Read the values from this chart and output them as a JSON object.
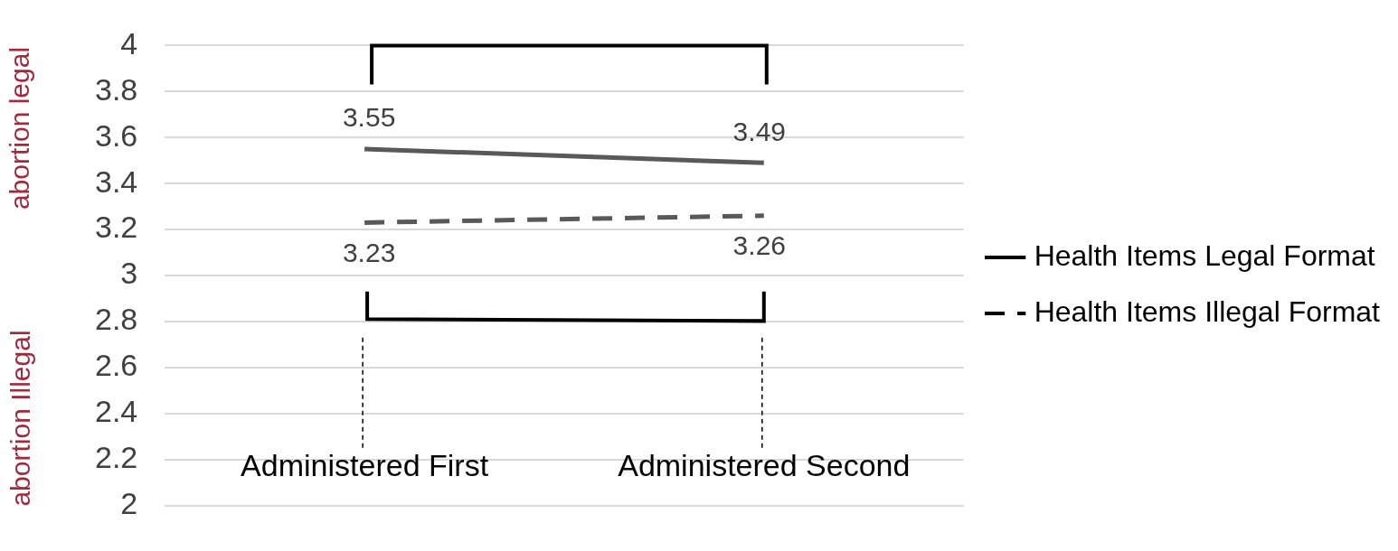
{
  "chart_data": {
    "type": "line",
    "categories": [
      "Administered First",
      "Administered Second"
    ],
    "series": [
      {
        "name": "Health Items Legal Format",
        "color": "#595959",
        "values": [
          3.55,
          3.49
        ],
        "line_style": "solid"
      },
      {
        "name": "Health Items Illegal Format",
        "color": "#595959",
        "values": [
          3.23,
          3.26
        ],
        "line_style": "dashed"
      }
    ],
    "ylim": [
      2,
      4
    ],
    "yticks": [
      2,
      2.2,
      2.4,
      2.6,
      2.8,
      3,
      3.2,
      3.4,
      3.6,
      3.8,
      4
    ],
    "grid": "y",
    "legend": "right",
    "marker": "none",
    "data_labels": true,
    "annotations": [
      "abortion legal",
      "abortion Illegal"
    ]
  }
}
